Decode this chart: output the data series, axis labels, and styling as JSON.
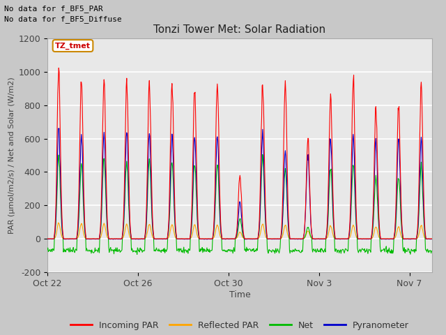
{
  "title": "Tonzi Tower Met: Solar Radiation",
  "xlabel": "Time",
  "ylabel": "PAR (μmol/m2/s) / Net and Solar (W/m2)",
  "ylim": [
    -200,
    1200
  ],
  "yticks": [
    -200,
    0,
    200,
    400,
    600,
    800,
    1000,
    1200
  ],
  "x_tick_labels": [
    "Oct 22",
    "Oct 26",
    "Oct 30",
    "Nov 3",
    "Nov 7"
  ],
  "annotation_lines": [
    "No data for f_BF5_PAR",
    "No data for f_BF5_Diffuse"
  ],
  "legend_items": [
    {
      "label": "Incoming PAR",
      "color": "#ff0000"
    },
    {
      "label": "Reflected PAR",
      "color": "#ffa500"
    },
    {
      "label": "Net",
      "color": "#00bb00"
    },
    {
      "label": "Pyranometer",
      "color": "#0000cc"
    }
  ],
  "tooltip_label": "TZ_tmet",
  "fig_bg_color": "#c8c8c8",
  "plot_bg_color": "#e8e8e8",
  "grid_color": "#ffffff",
  "n_days": 17,
  "peak_par": [
    1040,
    960,
    950,
    940,
    940,
    930,
    920,
    940,
    380,
    940,
    930,
    600,
    850,
    940,
    780,
    810,
    910
  ],
  "peak_pyr": [
    660,
    630,
    640,
    640,
    630,
    620,
    610,
    610,
    220,
    620,
    510,
    505,
    600,
    610,
    590,
    590,
    600
  ],
  "peak_net": [
    490,
    440,
    490,
    460,
    470,
    460,
    450,
    450,
    120,
    490,
    430,
    70,
    430,
    450,
    370,
    380,
    430
  ],
  "peak_ref": [
    95,
    90,
    90,
    88,
    88,
    85,
    85,
    85,
    40,
    88,
    82,
    48,
    78,
    82,
    72,
    72,
    78
  ]
}
